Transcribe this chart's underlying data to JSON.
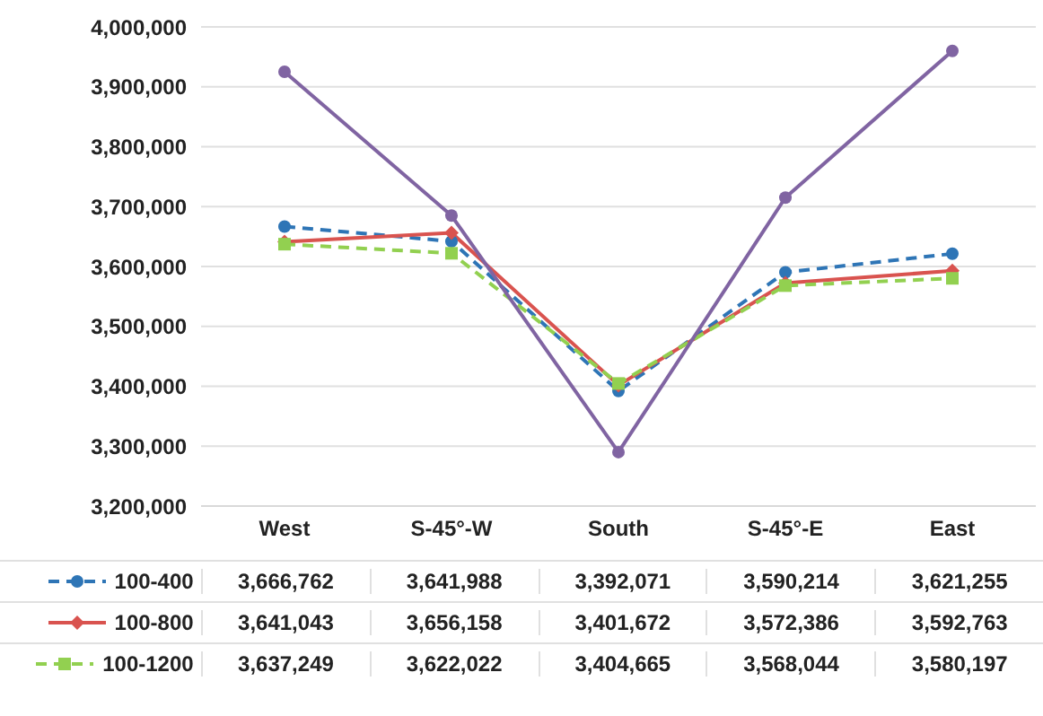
{
  "chart_data": {
    "type": "line",
    "categories": [
      "West",
      "S-45°-W",
      "South",
      "S-45°-E",
      "East"
    ],
    "series": [
      {
        "name": "100-400",
        "color": "#2e75b6",
        "marker": "circle",
        "line_style": "dashed",
        "values": [
          3666762,
          3641988,
          3392071,
          3590214,
          3621255
        ],
        "value_labels": [
          "3,666,762",
          "3,641,988",
          "3,392,071",
          "3,590,214",
          "3,621,255"
        ]
      },
      {
        "name": "100-800",
        "color": "#d9534f",
        "marker": "diamond",
        "line_style": "solid",
        "values": [
          3641043,
          3656158,
          3401672,
          3572386,
          3592763
        ],
        "value_labels": [
          "3,641,043",
          "3,656,158",
          "3,401,672",
          "3,572,386",
          "3,592,763"
        ]
      },
      {
        "name": "100-1200",
        "color": "#92d050",
        "marker": "square",
        "line_style": "dashed",
        "values": [
          3637249,
          3622022,
          3404665,
          3568044,
          3580197
        ],
        "value_labels": [
          "3,637,249",
          "3,622,022",
          "3,404,665",
          "3,568,044",
          "3,580,197"
        ]
      },
      {
        "color": "#8064a2",
        "marker": "circle",
        "line_style": "solid",
        "values": [
          3925000,
          3685000,
          3290000,
          3715000,
          3960000
        ]
      }
    ],
    "ylim": [
      3200000,
      4000000
    ],
    "yticks": [
      {
        "value": 3200000,
        "label": "3,200,000"
      },
      {
        "value": 3300000,
        "label": "3,300,000"
      },
      {
        "value": 3400000,
        "label": "3,400,000"
      },
      {
        "value": 3500000,
        "label": "3,500,000"
      },
      {
        "value": 3600000,
        "label": "3,600,000"
      },
      {
        "value": 3700000,
        "label": "3,700,000"
      },
      {
        "value": 3800000,
        "label": "3,800,000"
      },
      {
        "value": 3900000,
        "label": "3,900,000"
      },
      {
        "value": 4000000,
        "label": "4,000,000"
      }
    ],
    "grid": "y",
    "legend": "bottom"
  }
}
